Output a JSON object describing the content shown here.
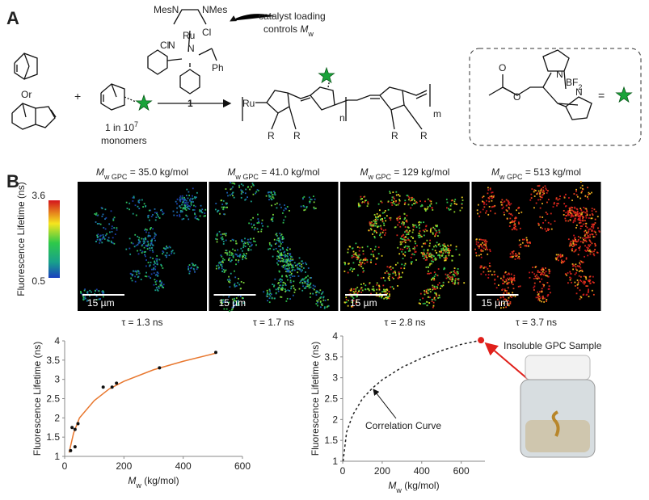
{
  "panel_a": {
    "label": "A",
    "catalyst": {
      "left": "MesN",
      "right": "NMes",
      "metal": "Ru",
      "cl": "Cl",
      "ph": "Ph",
      "n": "N",
      "number": "1"
    },
    "note": {
      "line1": "catalyst loading",
      "line2": "controls ",
      "m": "M",
      "w": "w"
    },
    "or": "Or",
    "plus": "+",
    "ratio": {
      "text": "1 in 10",
      "exp": "7",
      "line2": "monomers"
    },
    "polymer": {
      "ru": "Ru",
      "r": "R",
      "n": "n",
      "m": "m"
    },
    "dye": {
      "o": "O",
      "n": "N",
      "bf": "BF",
      "two": "2",
      "equals": "="
    }
  },
  "panel_b": {
    "label": "B",
    "colorbar": {
      "title": "Fluorescence Lifetime (ns)",
      "max": 3.6,
      "min": 0.5
    },
    "images": [
      {
        "m": "M",
        "sub": "w GPC",
        "rest": " = 35.0 kg/mol",
        "scale": "15 µm",
        "tau": "τ = 1.3 ns"
      },
      {
        "m": "M",
        "sub": "w GPC",
        "rest": " = 41.0 kg/mol",
        "scale": "15 µm",
        "tau": "τ = 1.7 ns"
      },
      {
        "m": "M",
        "sub": "w GPC",
        "rest": " = 129 kg/mol",
        "scale": "15 µm",
        "tau": "τ = 2.8 ns"
      },
      {
        "m": "M",
        "sub": "w GPC",
        "rest": " = 513 kg/mol",
        "scale": "15 µm",
        "tau": "τ = 3.7 ns"
      }
    ]
  },
  "chart_data": [
    {
      "type": "scatter",
      "ylabel": "Fluorescence Lifetime (ns)",
      "xlabel": {
        "m": "M",
        "sub": "w",
        "unit": " (kg/mol)"
      },
      "xlim": [
        0,
        600
      ],
      "xticks": [
        0,
        200,
        400,
        600
      ],
      "ylim": [
        1,
        4
      ],
      "yticks": [
        1,
        1.5,
        2,
        2.5,
        3,
        3.5,
        4
      ],
      "series": [
        {
          "color": "#e8772e",
          "mode": "line",
          "x": [
            15,
            30,
            50,
            100,
            150,
            200,
            300,
            400,
            510
          ],
          "values": [
            1.1,
            1.6,
            2.0,
            2.45,
            2.75,
            2.95,
            3.25,
            3.47,
            3.68
          ]
        },
        {
          "color": "#111111",
          "mode": "markers",
          "x": [
            20,
            25,
            35,
            35,
            45,
            130,
            160,
            175,
            320,
            510
          ],
          "values": [
            1.15,
            1.75,
            1.25,
            1.7,
            1.85,
            2.8,
            2.8,
            2.9,
            3.3,
            3.7
          ]
        }
      ]
    },
    {
      "type": "scatter",
      "ylabel": "Fluorescence Lifetime (ns)",
      "xlabel": {
        "m": "M",
        "sub": "w",
        "unit": " (kg/mol)"
      },
      "xlim": [
        0,
        720
      ],
      "xticks": [
        0,
        200,
        400,
        600
      ],
      "ylim": [
        1,
        4
      ],
      "yticks": [
        1,
        1.5,
        2,
        2.5,
        3,
        3.5,
        4
      ],
      "series": [
        {
          "color": "#222222",
          "mode": "dashed",
          "x": [
            2,
            20,
            50,
            100,
            150,
            200,
            300,
            400,
            500,
            600,
            700
          ],
          "values": [
            1.0,
            1.7,
            2.1,
            2.5,
            2.75,
            2.95,
            3.25,
            3.47,
            3.65,
            3.8,
            3.9
          ]
        },
        {
          "color": "#e0201b",
          "mode": "markers",
          "x": [
            700
          ],
          "values": [
            3.9
          ]
        }
      ],
      "annotations": {
        "curve": "Correlation Curve",
        "sample": "Insoluble GPC Sample"
      }
    }
  ]
}
